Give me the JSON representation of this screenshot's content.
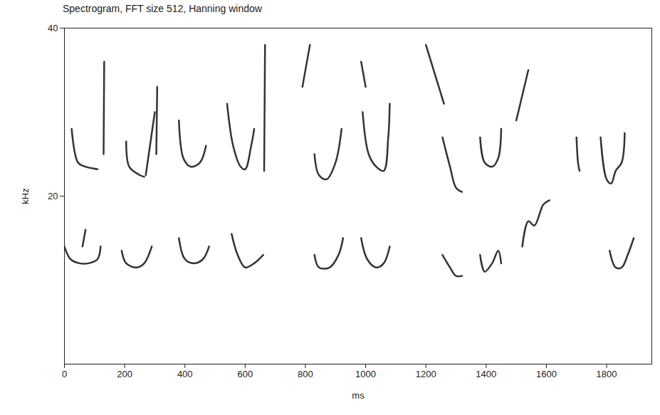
{
  "chart_data": {
    "type": "spectrogram",
    "title": "Spectrogram, FFT size 512, Hanning window",
    "x_label": "ms",
    "y_label": "kHz",
    "xlim": [
      0,
      1950
    ],
    "ylim": [
      0,
      40
    ],
    "xticks": [
      0,
      200,
      400,
      600,
      800,
      1000,
      1200,
      1400,
      1600,
      1800
    ],
    "yticks": [
      20,
      40
    ],
    "color": "#333333",
    "contours": [
      {
        "x": [
          24,
          45,
          70,
          110
        ],
        "y": [
          28,
          24,
          23.5,
          23.2
        ]
      },
      {
        "x": [
          130,
          132
        ],
        "y": [
          25,
          36
        ]
      },
      {
        "x": [
          205,
          215,
          250,
          265
        ],
        "y": [
          26.5,
          23.5,
          22.5,
          22.3
        ]
      },
      {
        "x": [
          270,
          300
        ],
        "y": [
          22.5,
          30
        ]
      },
      {
        "x": [
          305,
          308
        ],
        "y": [
          25,
          33
        ]
      },
      {
        "x": [
          380,
          395,
          420,
          450,
          470
        ],
        "y": [
          29,
          24.5,
          23.5,
          24,
          26
        ]
      },
      {
        "x": [
          540,
          560,
          585,
          600,
          620,
          630
        ],
        "y": [
          31,
          26,
          23.5,
          23.2,
          26,
          28
        ]
      },
      {
        "x": [
          663,
          666
        ],
        "y": [
          23,
          38
        ]
      },
      {
        "x": [
          830,
          845,
          870,
          900,
          920
        ],
        "y": [
          25,
          22.5,
          22,
          24,
          28
        ]
      },
      {
        "x": [
          990,
          1010,
          1035,
          1060,
          1075,
          1080
        ],
        "y": [
          30,
          25,
          23.5,
          23,
          27,
          31
        ]
      },
      {
        "x": [
          1255,
          1280,
          1300,
          1320
        ],
        "y": [
          27,
          23.5,
          21,
          20.5
        ]
      },
      {
        "x": [
          1380,
          1395,
          1420,
          1440,
          1450
        ],
        "y": [
          27,
          24,
          23.5,
          24.5,
          28
        ]
      },
      {
        "x": [
          1700,
          1705,
          1710
        ],
        "y": [
          27,
          24,
          23
        ]
      },
      {
        "x": [
          1780,
          1800,
          1815,
          1830,
          1850,
          1860
        ],
        "y": [
          27,
          22,
          21.5,
          23,
          24,
          27.5
        ]
      },
      {
        "x": [
          790,
          815
        ],
        "y": [
          33,
          38
        ]
      },
      {
        "x": [
          985,
          1000
        ],
        "y": [
          36,
          33
        ]
      },
      {
        "x": [
          1200,
          1260
        ],
        "y": [
          38,
          31
        ]
      },
      {
        "x": [
          1500,
          1540
        ],
        "y": [
          29,
          35
        ]
      },
      {
        "x": [
          0,
          20,
          50,
          80,
          110,
          120
        ],
        "y": [
          14,
          12.5,
          12,
          12,
          12.5,
          14
        ]
      },
      {
        "x": [
          60,
          70
        ],
        "y": [
          14,
          16
        ]
      },
      {
        "x": [
          190,
          205,
          240,
          265,
          290
        ],
        "y": [
          13.5,
          12,
          11.5,
          12,
          14
        ]
      },
      {
        "x": [
          380,
          400,
          430,
          460,
          480
        ],
        "y": [
          15,
          12.5,
          12,
          12.5,
          14
        ]
      },
      {
        "x": [
          555,
          575,
          600,
          630,
          660
        ],
        "y": [
          15.5,
          13,
          11.5,
          12,
          13
        ]
      },
      {
        "x": [
          830,
          845,
          880,
          910,
          925
        ],
        "y": [
          13,
          11.5,
          11.5,
          13,
          15
        ]
      },
      {
        "x": [
          985,
          1005,
          1035,
          1060,
          1080
        ],
        "y": [
          15,
          12.5,
          11.5,
          12,
          14
        ]
      },
      {
        "x": [
          1255,
          1280,
          1300,
          1320
        ],
        "y": [
          13,
          11.5,
          10.5,
          10.5
        ]
      },
      {
        "x": [
          1380,
          1395,
          1420,
          1440,
          1450
        ],
        "y": [
          13,
          11,
          12,
          13.5,
          12
        ]
      },
      {
        "x": [
          1520,
          1540,
          1560,
          1590,
          1610
        ],
        "y": [
          14,
          17,
          16.5,
          19,
          19.5
        ]
      },
      {
        "x": [
          1810,
          1830,
          1850,
          1870,
          1890
        ],
        "y": [
          13.5,
          11.5,
          11.5,
          13,
          15
        ]
      }
    ]
  }
}
